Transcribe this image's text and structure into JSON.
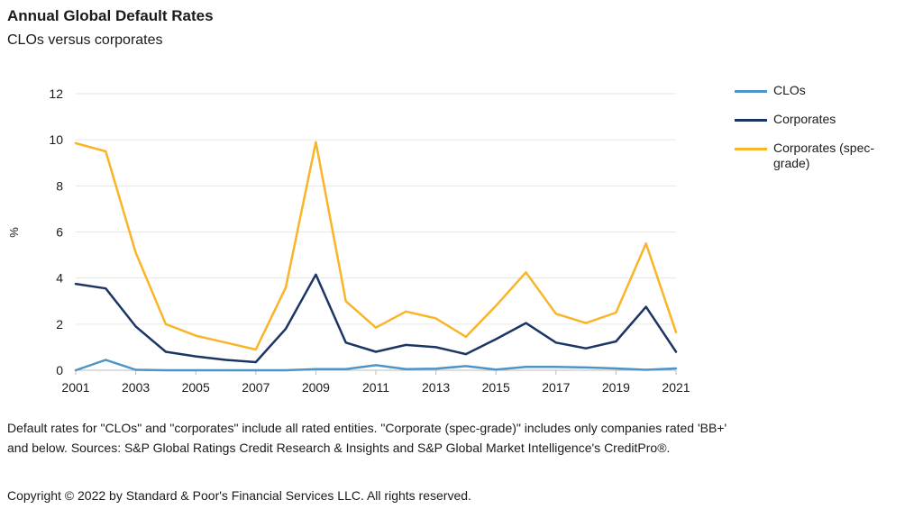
{
  "chart_data": {
    "type": "line",
    "title": "Annual Global Default Rates",
    "subtitle": "CLOs versus corporates",
    "ylabel": "%",
    "xlabel": "",
    "ylim": [
      0,
      12
    ],
    "yticks": [
      0,
      2,
      4,
      6,
      8,
      10,
      12
    ],
    "grid": true,
    "legend_position": "right",
    "x": [
      2001,
      2002,
      2003,
      2004,
      2005,
      2006,
      2007,
      2008,
      2009,
      2010,
      2011,
      2012,
      2013,
      2014,
      2015,
      2016,
      2017,
      2018,
      2019,
      2020,
      2021
    ],
    "xtick_labels": [
      "2001",
      "2003",
      "2005",
      "2007",
      "2009",
      "2011",
      "2013",
      "2015",
      "2017",
      "2019",
      "2021"
    ],
    "series": [
      {
        "name": "CLOs",
        "color": "#4e95c7",
        "values": [
          0.0,
          0.45,
          0.02,
          0.0,
          0.0,
          0.0,
          0.0,
          0.0,
          0.05,
          0.05,
          0.22,
          0.05,
          0.07,
          0.18,
          0.03,
          0.15,
          0.15,
          0.12,
          0.08,
          0.02,
          0.08
        ]
      },
      {
        "name": "Corporates",
        "color": "#1b3564",
        "values": [
          3.75,
          3.55,
          1.9,
          0.8,
          0.6,
          0.45,
          0.35,
          1.8,
          4.15,
          1.2,
          0.8,
          1.1,
          1.0,
          0.7,
          1.35,
          2.05,
          1.2,
          0.95,
          1.25,
          2.75,
          0.8
        ]
      },
      {
        "name": "Corporates (spec-grade)",
        "color": "#f9b428",
        "values": [
          9.85,
          9.5,
          5.1,
          2.0,
          1.5,
          1.2,
          0.9,
          3.6,
          9.9,
          3.0,
          1.85,
          2.55,
          2.25,
          1.45,
          2.8,
          4.25,
          2.45,
          2.05,
          2.5,
          5.5,
          1.65
        ]
      }
    ]
  },
  "footnote": "Default rates for \"CLOs\" and \"corporates\" include all rated entities. \"Corporate (spec-grade)\" includes only companies rated 'BB+' and below. Sources: S&P Global Ratings Credit Research & Insights and S&P Global Market Intelligence's CreditPro®.",
  "copyright": "Copyright © 2022 by Standard & Poor's Financial Services LLC. All rights reserved."
}
